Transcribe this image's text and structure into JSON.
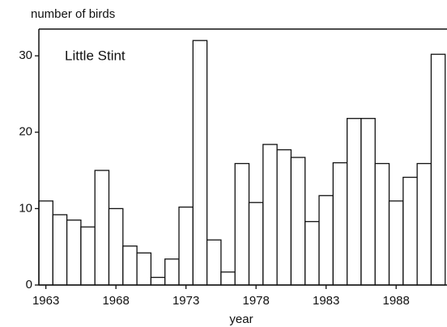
{
  "chart_data": {
    "type": "bar",
    "y_label": "number of birds",
    "x_label": "year",
    "annotation": "Little Stint",
    "x": [
      1963,
      1964,
      1965,
      1966,
      1967,
      1968,
      1969,
      1970,
      1971,
      1972,
      1973,
      1974,
      1975,
      1976,
      1977,
      1978,
      1979,
      1980,
      1981,
      1982,
      1983,
      1984,
      1985,
      1986,
      1987,
      1988,
      1989,
      1990,
      1991
    ],
    "values": [
      11,
      9.2,
      8.5,
      7.6,
      15,
      10,
      5.1,
      4.2,
      1,
      3.4,
      10.2,
      32,
      5.9,
      1.7,
      15.9,
      10.8,
      18.4,
      17.7,
      16.7,
      8.3,
      11.7,
      16,
      21.8,
      21.8,
      15.9,
      11,
      14.1,
      15.9,
      30.2
    ],
    "color": "#ffffff",
    "xlim": [
      1962.5,
      1991.63
    ],
    "xticks": [
      1963,
      1968,
      1973,
      1978,
      1983,
      1988
    ],
    "ylim": [
      0,
      33.5
    ],
    "yticks": [
      0,
      10,
      20,
      30
    ],
    "grid": false
  }
}
